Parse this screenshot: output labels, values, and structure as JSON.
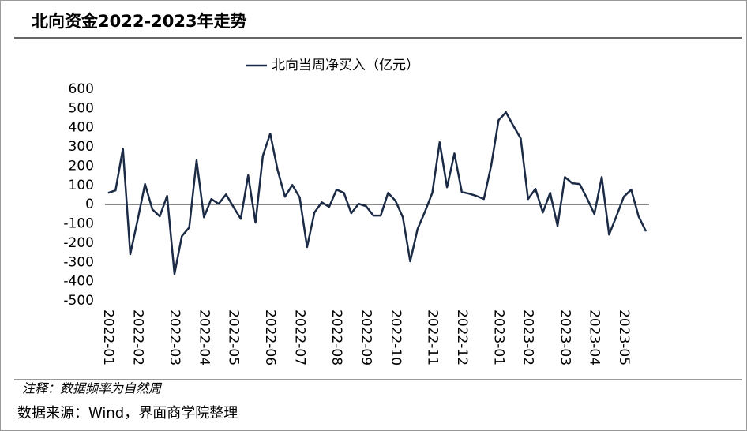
{
  "chart_data": {
    "type": "line",
    "title": "北向资金2022-2023年走势",
    "note": "注释：数据频率为自然周",
    "source": "数据来源：Wind，界面商学院整理",
    "categories": [
      "2022-01",
      null,
      null,
      null,
      "2022-02",
      null,
      null,
      null,
      null,
      "2022-03",
      null,
      null,
      null,
      "2022-04",
      null,
      null,
      null,
      "2022-05",
      null,
      null,
      null,
      null,
      "2022-06",
      null,
      null,
      null,
      "2022-07",
      null,
      null,
      null,
      null,
      "2022-08",
      null,
      null,
      null,
      "2022-09",
      null,
      null,
      null,
      "2022-10",
      null,
      null,
      null,
      null,
      "2022-11",
      null,
      null,
      null,
      "2022-12",
      null,
      null,
      null,
      null,
      "2023-01",
      null,
      null,
      null,
      "2023-02",
      null,
      null,
      null,
      null,
      "2023-03",
      null,
      null,
      null,
      "2023-04",
      null,
      null,
      null,
      "2023-05",
      null,
      null,
      null
    ],
    "series": [
      {
        "name": "北向当周净买入（亿元）",
        "color": "#1b2a45",
        "values": [
          61,
          74,
          291,
          -258,
          -80,
          107,
          -25,
          -61,
          45,
          -361,
          -164,
          -119,
          230,
          -66,
          29,
          4,
          53,
          -12,
          -74,
          152,
          -94,
          254,
          369,
          180,
          41,
          102,
          37,
          -221,
          -41,
          12,
          -12,
          78,
          61,
          -45,
          4,
          -8,
          -57,
          -57,
          61,
          20,
          -66,
          -295,
          -127,
          -37,
          61,
          324,
          90,
          266,
          66,
          57,
          45,
          29,
          205,
          439,
          480,
          410,
          344,
          29,
          82,
          -41,
          61,
          -111,
          143,
          111,
          107,
          33,
          -49,
          143,
          -156,
          -60,
          41,
          78,
          -61,
          -139
        ]
      }
    ],
    "ylim": [
      -500,
      600
    ],
    "yticks": [
      600,
      500,
      400,
      300,
      200,
      100,
      0,
      -100,
      -200,
      -300,
      -400,
      -500
    ],
    "legend": "top"
  }
}
